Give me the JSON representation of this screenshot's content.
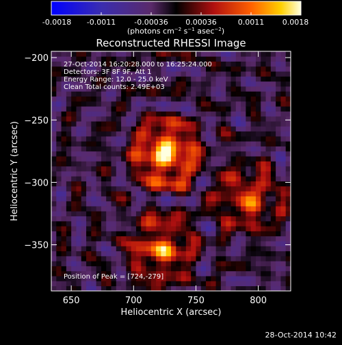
{
  "colorbar": {
    "tick_labels": [
      "-0.0018",
      "-0.0011",
      "-0.00036",
      "0.00036",
      "0.0011",
      "0.0018"
    ],
    "unit_label_html": "(photons cm<tspan baseline-shift=\"super\" font-size=\"7\">−2</tspan> s<tspan baseline-shift=\"super\" font-size=\"7\">−1</tspan> asec<tspan baseline-shift=\"super\" font-size=\"7\">−2</tspan>)",
    "unit_label": "(photons cm^-2 s^-1 asec^-2)"
  },
  "annotations": {
    "line1": "27-Oct-2014 16:20:28.000 to 16:25:24.000",
    "line2": "Detectors: 3F 8F 9F, Att 1",
    "line3": "Energy Range: 12.0 - 25.0 keV",
    "line4": "Clean    Total counts: 2.49E+03",
    "peak": "Position of Peak = [724,-279]"
  },
  "timestamp": "28-Oct-2014 10:42",
  "colors": {
    "background": "#000000",
    "text": "#ffffff"
  },
  "chart_data": {
    "type": "heatmap",
    "title": "Reconstructed RHESSI Image",
    "xlabel": "Heliocentric X (arcsec)",
    "ylabel": "Heliocentric Y (arcsec)",
    "xlim": [
      634,
      826
    ],
    "ylim": [
      -387,
      -195
    ],
    "x_ticks": [
      650,
      700,
      750,
      800
    ],
    "y_ticks": [
      -200,
      -250,
      -300,
      -350
    ],
    "colorscale": "blue-purple-black-red-yellow-white",
    "value_range": [
      -0.0018,
      0.0018
    ],
    "peak": [
      724,
      -279
    ],
    "sources": [
      {
        "x": 724,
        "y": -279,
        "relative_intensity": 1.0
      },
      {
        "x": 720,
        "y": -355,
        "relative_intensity": 0.7
      },
      {
        "x": 790,
        "y": -315,
        "relative_intensity": 0.6
      }
    ]
  }
}
